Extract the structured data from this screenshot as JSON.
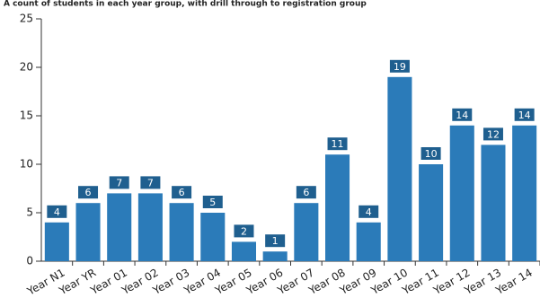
{
  "chart_data": {
    "type": "bar",
    "title": "A count of students in each year group, with drill through to registration group",
    "categories": [
      "Year N1",
      "Year YR",
      "Year 01",
      "Year 02",
      "Year 03",
      "Year 04",
      "Year 05",
      "Year 06",
      "Year 07",
      "Year 08",
      "Year 09",
      "Year 10",
      "Year 11",
      "Year 12",
      "Year 13",
      "Year 14"
    ],
    "values": [
      4,
      6,
      7,
      7,
      6,
      5,
      2,
      1,
      6,
      11,
      4,
      19,
      10,
      14,
      12,
      14
    ],
    "color": "#2b7bb9",
    "label_color": "#1f5f8f",
    "ylim": [
      0,
      25
    ],
    "yticks": [
      0,
      5,
      10,
      15,
      20,
      25
    ]
  }
}
